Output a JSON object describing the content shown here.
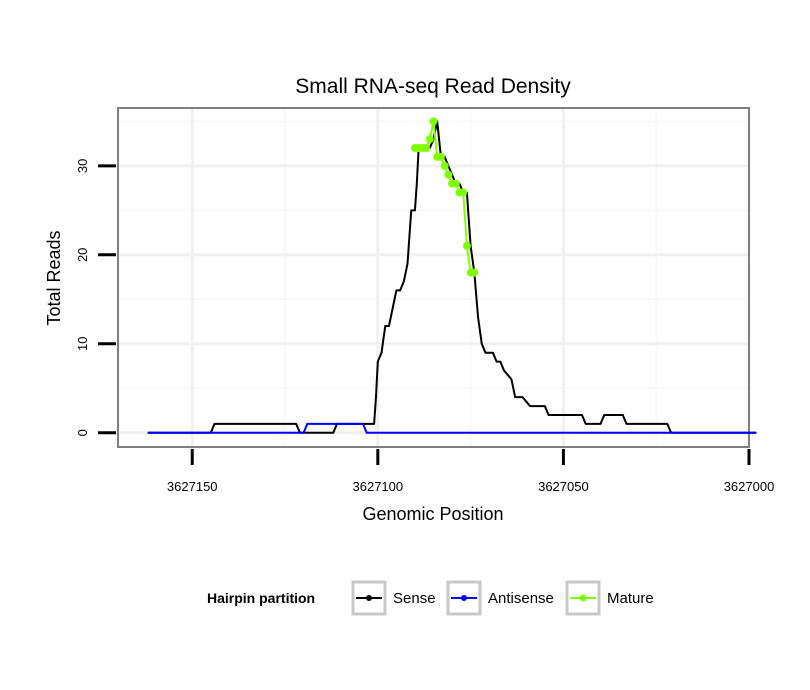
{
  "chart_data": {
    "type": "line",
    "title": "Small RNA-seq Read Density",
    "xlabel": "Genomic Position",
    "ylabel": "Total Reads",
    "xlim": [
      3627170,
      3627000
    ],
    "ylim": [
      -1.6,
      36.5
    ],
    "x_ticks": [
      3627150,
      3627100,
      3627050,
      3627000
    ],
    "x_tick_labels": [
      "3627150",
      "3627100",
      "3627050",
      "3627000"
    ],
    "y_ticks": [
      0,
      10,
      20,
      30
    ],
    "y_tick_labels": [
      "0",
      "10",
      "20",
      "30"
    ],
    "grid": true,
    "legend_position": "bottom",
    "legend_title": "Hairpin partition",
    "series": [
      {
        "name": "Sense",
        "color": "#000000",
        "x": [
          3627162,
          3627145,
          3627144,
          3627122,
          3627121,
          3627112,
          3627111,
          3627101,
          3627100.5,
          3627100,
          3627099,
          3627098,
          3627097,
          3627095,
          3627094,
          3627093,
          3627092,
          3627091,
          3627090,
          3627089.5,
          3627089,
          3627088,
          3627087,
          3627086,
          3627085,
          3627084,
          3627083,
          3627082,
          3627081,
          3627080,
          3627079,
          3627078,
          3627077,
          3627076,
          3627075,
          3627074,
          3627073,
          3627072,
          3627071,
          3627070,
          3627069,
          3627068,
          3627067,
          3627066,
          3627064,
          3627063,
          3627061,
          3627059,
          3627058,
          3627055,
          3627054,
          3627045,
          3627044,
          3627040,
          3627039,
          3627034,
          3627033,
          3627022,
          3627021,
          3627016,
          3627015,
          3626998
        ],
        "values": [
          0,
          0,
          1,
          1,
          0,
          0,
          1,
          1,
          4,
          8,
          9,
          12,
          12,
          16,
          16,
          17,
          19,
          25,
          25,
          28,
          32,
          32,
          32,
          32,
          33,
          35,
          31,
          31,
          30,
          29,
          28,
          28,
          27,
          27,
          21,
          18,
          13,
          10,
          9,
          9,
          9,
          8,
          8,
          7,
          6,
          4,
          4,
          3,
          3,
          3,
          2,
          2,
          1,
          1,
          2,
          2,
          1,
          1,
          0,
          0,
          0,
          0
        ]
      },
      {
        "name": "Antisense",
        "color": "#0000ff",
        "x": [
          3627162,
          3627120,
          3627119,
          3627104,
          3627103,
          3626998
        ],
        "values": [
          0,
          0,
          1,
          1,
          0,
          0
        ]
      },
      {
        "name": "Mature",
        "color": "#7fff00",
        "x": [
          3627090,
          3627089,
          3627088,
          3627087,
          3627086,
          3627085,
          3627084,
          3627083,
          3627082,
          3627081,
          3627080,
          3627079,
          3627078,
          3627077,
          3627076,
          3627075,
          3627074
        ],
        "values": [
          32,
          32,
          32,
          32,
          33,
          35,
          31,
          31,
          30,
          29,
          28,
          28,
          27,
          27,
          21,
          18,
          18
        ]
      }
    ]
  }
}
